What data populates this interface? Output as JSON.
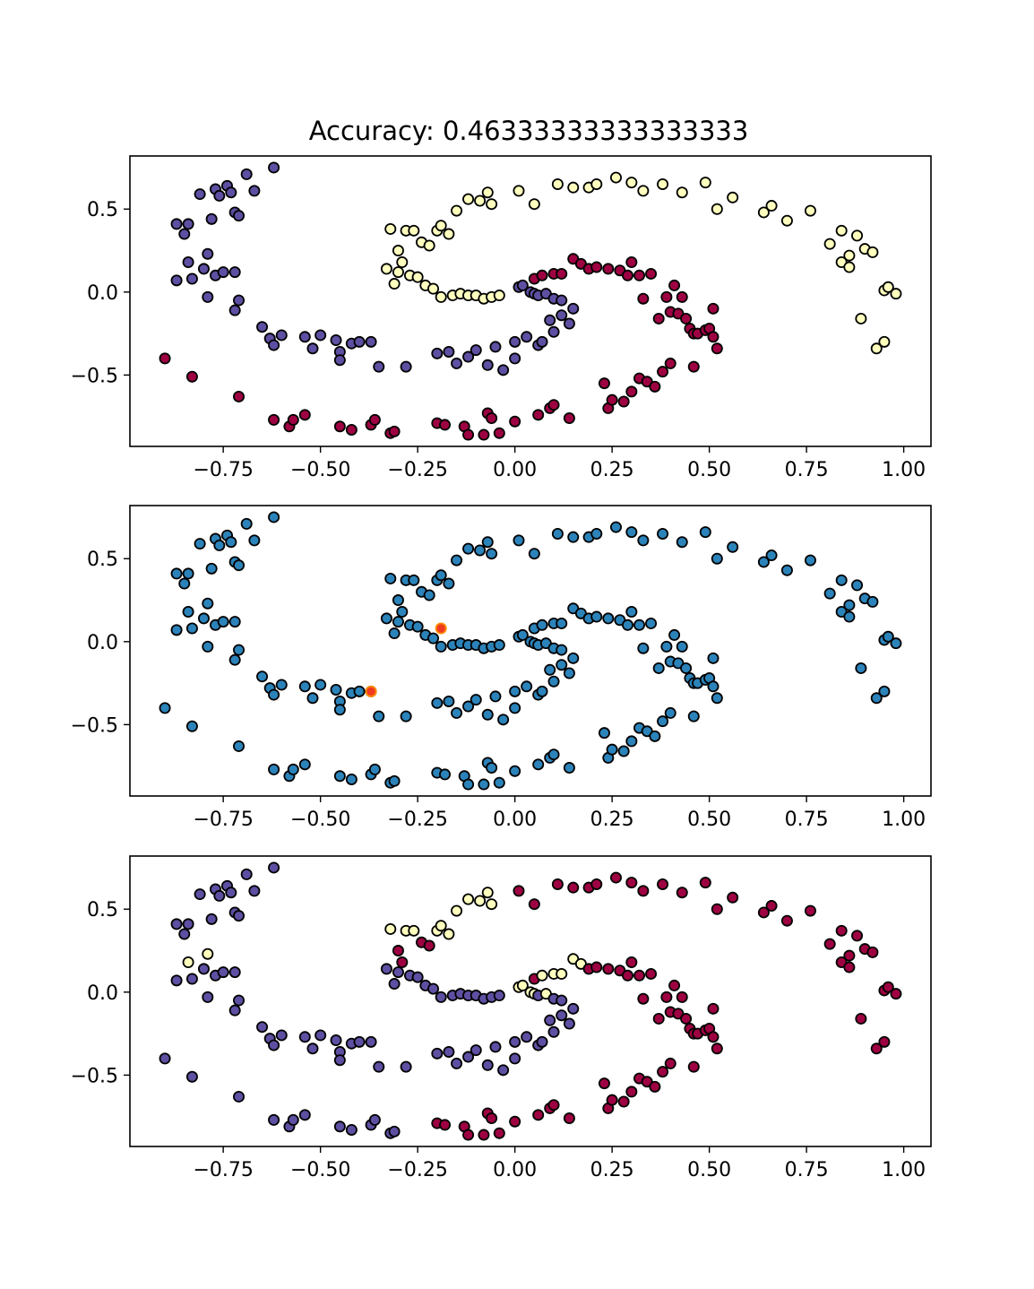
{
  "chart_data": [
    {
      "type": "scatter",
      "title": "Accuracy: 0.46333333333333333",
      "xlim": [
        -0.99,
        1.07
      ],
      "ylim": [
        -0.93,
        0.82
      ],
      "xticks": [
        -0.75,
        -0.5,
        -0.25,
        0.0,
        0.25,
        0.5,
        0.75,
        1.0
      ],
      "xtick_labels": [
        "−0.75",
        "−0.50",
        "−0.25",
        "0.00",
        "0.25",
        "0.50",
        "0.75",
        "1.00"
      ],
      "yticks": [
        -0.5,
        0.0,
        0.5
      ],
      "ytick_labels": [
        "−0.5",
        "0.0",
        "0.5"
      ],
      "colors": {
        "purple": "#5e4fa2",
        "yellow": "#ffffbe",
        "red": "#9e0142"
      },
      "series": [
        {
          "name": "purple",
          "points": [
            [
              -0.87,
              0.41
            ],
            [
              -0.85,
              0.35
            ],
            [
              -0.84,
              0.41
            ],
            [
              -0.81,
              0.59
            ],
            [
              -0.79,
              0.23
            ],
            [
              -0.78,
              0.44
            ],
            [
              -0.77,
              0.62
            ],
            [
              -0.76,
              0.58
            ],
            [
              -0.74,
              0.64
            ],
            [
              -0.73,
              0.6
            ],
            [
              -0.72,
              0.48
            ],
            [
              -0.71,
              0.46
            ],
            [
              -0.69,
              0.71
            ],
            [
              -0.67,
              0.61
            ],
            [
              -0.62,
              0.75
            ],
            [
              -0.84,
              0.18
            ],
            [
              -0.8,
              0.14
            ],
            [
              -0.77,
              0.1
            ],
            [
              -0.75,
              0.12
            ],
            [
              -0.72,
              0.12
            ],
            [
              -0.87,
              0.07
            ],
            [
              -0.83,
              0.08
            ],
            [
              -0.79,
              -0.03
            ],
            [
              -0.72,
              -0.11
            ],
            [
              -0.71,
              -0.05
            ],
            [
              -0.65,
              -0.21
            ],
            [
              -0.63,
              -0.28
            ],
            [
              -0.62,
              -0.32
            ],
            [
              -0.6,
              -0.26
            ],
            [
              -0.54,
              -0.27
            ],
            [
              -0.52,
              -0.34
            ],
            [
              -0.5,
              -0.26
            ],
            [
              -0.46,
              -0.29
            ],
            [
              -0.45,
              -0.36
            ],
            [
              -0.45,
              -0.41
            ],
            [
              -0.42,
              -0.31
            ],
            [
              -0.4,
              -0.3
            ],
            [
              -0.37,
              -0.3
            ],
            [
              -0.35,
              -0.45
            ],
            [
              -0.28,
              -0.45
            ],
            [
              -0.2,
              -0.37
            ],
            [
              -0.17,
              -0.36
            ],
            [
              -0.15,
              -0.43
            ],
            [
              -0.12,
              -0.39
            ],
            [
              -0.1,
              -0.35
            ],
            [
              -0.07,
              -0.44
            ],
            [
              -0.05,
              -0.33
            ],
            [
              -0.03,
              -0.47
            ],
            [
              0.0,
              -0.4
            ],
            [
              0.0,
              -0.3
            ],
            [
              0.03,
              -0.27
            ],
            [
              0.06,
              -0.32
            ],
            [
              0.07,
              -0.3
            ],
            [
              0.09,
              -0.17
            ],
            [
              0.1,
              -0.24
            ],
            [
              0.12,
              -0.14
            ],
            [
              0.14,
              -0.19
            ],
            [
              0.15,
              -0.1
            ],
            [
              0.01,
              0.03
            ],
            [
              0.02,
              0.04
            ],
            [
              0.04,
              0.0
            ],
            [
              0.05,
              -0.01
            ],
            [
              0.06,
              -0.02
            ],
            [
              0.08,
              -0.01
            ],
            [
              0.1,
              -0.04
            ],
            [
              0.12,
              -0.05
            ]
          ]
        },
        {
          "name": "yellow",
          "points": [
            [
              -0.32,
              0.38
            ],
            [
              -0.3,
              0.25
            ],
            [
              -0.29,
              0.18
            ],
            [
              -0.28,
              0.37
            ],
            [
              -0.26,
              0.37
            ],
            [
              -0.24,
              0.3
            ],
            [
              -0.22,
              0.28
            ],
            [
              -0.2,
              0.37
            ],
            [
              -0.19,
              0.4
            ],
            [
              -0.17,
              0.35
            ],
            [
              -0.15,
              0.49
            ],
            [
              -0.12,
              0.56
            ],
            [
              -0.09,
              0.55
            ],
            [
              -0.07,
              0.6
            ],
            [
              -0.06,
              0.53
            ],
            [
              0.01,
              0.61
            ],
            [
              0.05,
              0.53
            ],
            [
              0.11,
              0.65
            ],
            [
              0.15,
              0.63
            ],
            [
              0.19,
              0.63
            ],
            [
              0.21,
              0.65
            ],
            [
              0.26,
              0.69
            ],
            [
              0.3,
              0.66
            ],
            [
              0.33,
              0.61
            ],
            [
              0.38,
              0.65
            ],
            [
              0.43,
              0.6
            ],
            [
              0.49,
              0.66
            ],
            [
              0.52,
              0.5
            ],
            [
              0.56,
              0.57
            ],
            [
              0.64,
              0.48
            ],
            [
              0.66,
              0.52
            ],
            [
              0.7,
              0.43
            ],
            [
              0.76,
              0.49
            ],
            [
              0.81,
              0.29
            ],
            [
              0.84,
              0.37
            ],
            [
              0.86,
              0.22
            ],
            [
              0.88,
              0.34
            ],
            [
              0.9,
              0.26
            ],
            [
              0.92,
              0.24
            ],
            [
              0.95,
              0.01
            ],
            [
              0.96,
              0.03
            ],
            [
              0.98,
              -0.01
            ],
            [
              0.89,
              -0.16
            ],
            [
              0.95,
              -0.3
            ],
            [
              0.93,
              -0.34
            ],
            [
              0.84,
              0.18
            ],
            [
              0.86,
              0.15
            ],
            [
              -0.33,
              0.14
            ],
            [
              -0.3,
              0.12
            ],
            [
              -0.31,
              0.05
            ],
            [
              -0.27,
              0.1
            ],
            [
              -0.25,
              0.09
            ],
            [
              -0.23,
              0.04
            ],
            [
              -0.21,
              0.02
            ],
            [
              -0.19,
              -0.03
            ],
            [
              -0.16,
              -0.02
            ],
            [
              -0.14,
              -0.01
            ],
            [
              -0.12,
              -0.02
            ],
            [
              -0.1,
              -0.02
            ],
            [
              -0.08,
              -0.04
            ],
            [
              -0.06,
              -0.03
            ],
            [
              -0.04,
              -0.02
            ]
          ]
        },
        {
          "name": "red",
          "points": [
            [
              -0.9,
              -0.4
            ],
            [
              -0.83,
              -0.51
            ],
            [
              -0.71,
              -0.63
            ],
            [
              -0.62,
              -0.77
            ],
            [
              -0.58,
              -0.81
            ],
            [
              -0.57,
              -0.77
            ],
            [
              -0.54,
              -0.74
            ],
            [
              -0.45,
              -0.81
            ],
            [
              -0.42,
              -0.83
            ],
            [
              -0.37,
              -0.8
            ],
            [
              -0.36,
              -0.77
            ],
            [
              -0.32,
              -0.85
            ],
            [
              -0.31,
              -0.84
            ],
            [
              -0.2,
              -0.79
            ],
            [
              -0.18,
              -0.8
            ],
            [
              -0.13,
              -0.81
            ],
            [
              -0.12,
              -0.86
            ],
            [
              -0.08,
              -0.86
            ],
            [
              -0.07,
              -0.73
            ],
            [
              -0.06,
              -0.76
            ],
            [
              -0.04,
              -0.85
            ],
            [
              0.0,
              -0.78
            ],
            [
              0.06,
              -0.74
            ],
            [
              0.09,
              -0.7
            ],
            [
              0.1,
              -0.68
            ],
            [
              0.14,
              -0.76
            ],
            [
              0.23,
              -0.55
            ],
            [
              0.24,
              -0.7
            ],
            [
              0.25,
              -0.65
            ],
            [
              0.28,
              -0.66
            ],
            [
              0.3,
              -0.6
            ],
            [
              0.32,
              -0.52
            ],
            [
              0.34,
              -0.54
            ],
            [
              0.36,
              -0.57
            ],
            [
              0.38,
              -0.48
            ],
            [
              0.4,
              -0.43
            ],
            [
              0.46,
              -0.45
            ],
            [
              0.05,
              0.08
            ],
            [
              0.07,
              0.1
            ],
            [
              0.1,
              0.11
            ],
            [
              0.12,
              0.11
            ],
            [
              0.15,
              0.2
            ],
            [
              0.17,
              0.17
            ],
            [
              0.19,
              0.14
            ],
            [
              0.21,
              0.15
            ],
            [
              0.24,
              0.14
            ],
            [
              0.27,
              0.13
            ],
            [
              0.29,
              0.1
            ],
            [
              0.3,
              0.18
            ],
            [
              0.32,
              0.1
            ],
            [
              0.33,
              -0.04
            ],
            [
              0.35,
              0.11
            ],
            [
              0.37,
              -0.16
            ],
            [
              0.39,
              -0.03
            ],
            [
              0.4,
              -0.12
            ],
            [
              0.41,
              0.04
            ],
            [
              0.42,
              -0.13
            ],
            [
              0.43,
              -0.03
            ],
            [
              0.44,
              -0.16
            ],
            [
              0.45,
              -0.22
            ],
            [
              0.46,
              -0.25
            ],
            [
              0.47,
              -0.25
            ],
            [
              0.49,
              -0.23
            ],
            [
              0.5,
              -0.22
            ],
            [
              0.51,
              -0.27
            ],
            [
              0.52,
              -0.34
            ],
            [
              0.51,
              -0.1
            ]
          ]
        }
      ]
    },
    {
      "type": "scatter",
      "xlim": [
        -0.99,
        1.07
      ],
      "ylim": [
        -0.93,
        0.82
      ],
      "colors": {
        "base": "#2b83ba",
        "highlight": "#f03b20",
        "highlight_edge": "#ff8c00"
      },
      "highlighted_points": [
        [
          -0.37,
          -0.3
        ],
        [
          -0.19,
          0.08
        ]
      ]
    },
    {
      "type": "scatter",
      "xlim": [
        -0.99,
        1.07
      ],
      "ylim": [
        -0.93,
        0.82
      ],
      "note": "Points use predicted classes (purple / yellow / red)"
    }
  ]
}
